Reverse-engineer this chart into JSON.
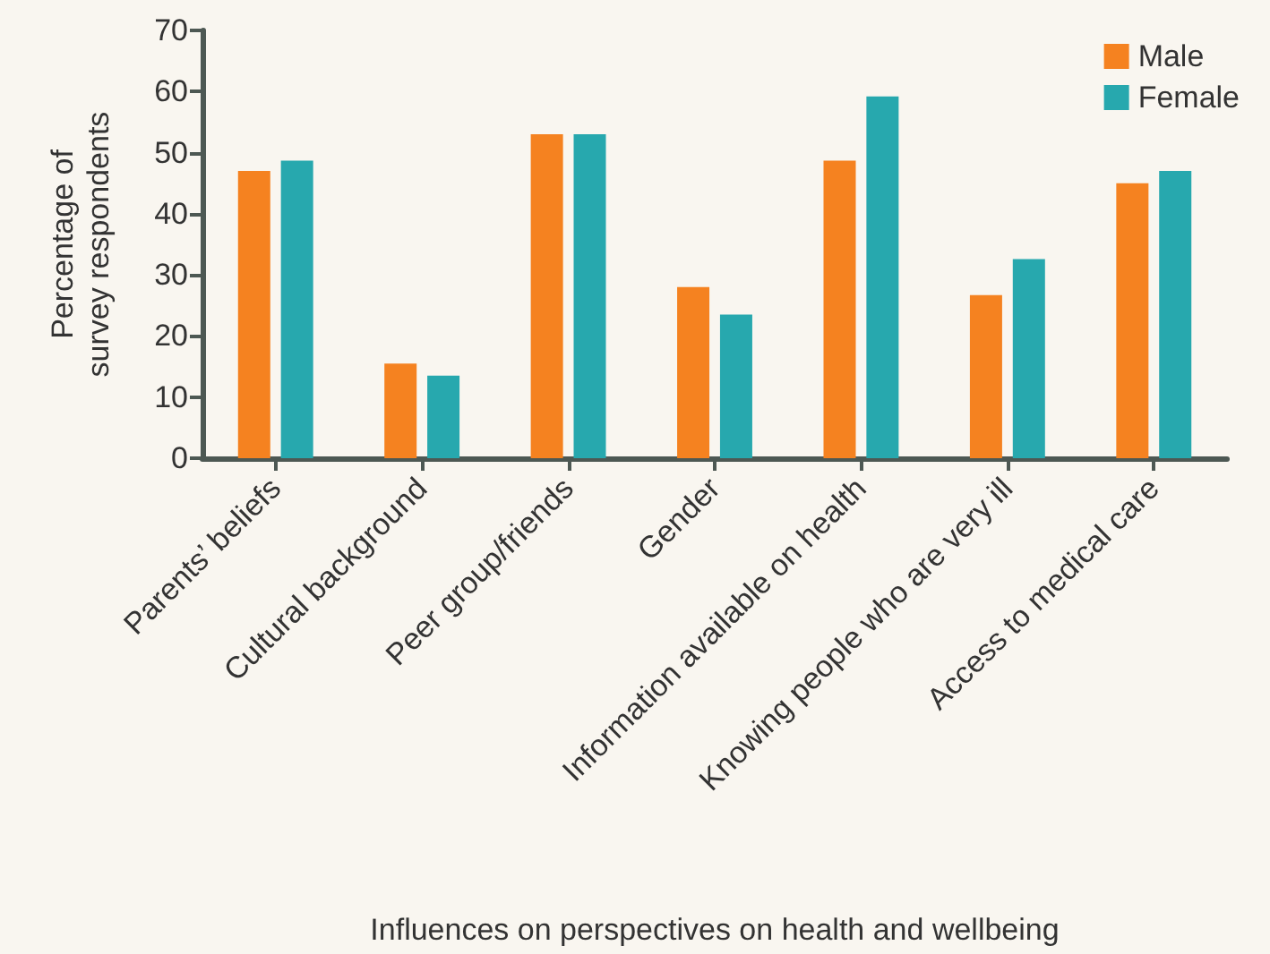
{
  "chart_data": {
    "type": "bar",
    "xlabel": "Influences on perspectives on health and wellbeing",
    "ylabel": "Percentage of\nsurvey respondents",
    "categories": [
      "Parents’ beliefs",
      "Cultural background",
      "Peer group/friends",
      "Gender",
      "Information available on health",
      "Knowing people who are very ill",
      "Access to medical care"
    ],
    "series": [
      {
        "name": "Male",
        "color": "#f58220",
        "values": [
          47,
          15.5,
          53,
          28,
          48.7,
          26.7,
          45
        ]
      },
      {
        "name": "Female",
        "color": "#27a8ae",
        "values": [
          48.7,
          13.5,
          53,
          23.5,
          59.2,
          32.6,
          47
        ]
      }
    ],
    "ylim": [
      0,
      70
    ],
    "yticks": [
      0,
      10,
      20,
      30,
      40,
      50,
      60,
      70
    ],
    "grid": false,
    "legend": "top right"
  }
}
